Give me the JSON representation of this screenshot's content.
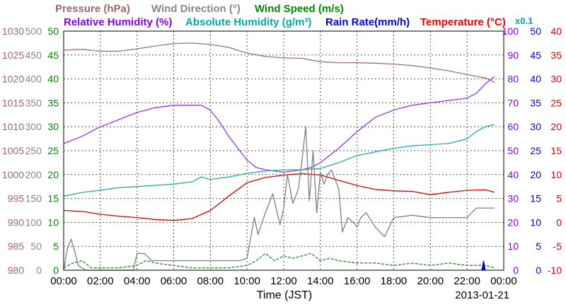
{
  "chart_data": {
    "type": "line",
    "legend": {
      "pressure": "Pressure (hPa)",
      "wind_direction": "Wind Direction (°)",
      "wind_speed": "Wind Speed (m/s)",
      "relative_humidity": "Relative Humidity (%)",
      "absolute_humidity": "Absolute Humidity (g/m³)",
      "rain_rate": "Rain Rate(mm/h)",
      "temperature": "Temperature (°C)",
      "scale_note": "x0.1"
    },
    "xlabel": "Time (JST)",
    "date": "2013-01-21",
    "x_ticks": [
      "00:00",
      "02:00",
      "04:00",
      "06:00",
      "08:00",
      "10:00",
      "12:00",
      "14:00",
      "16:00",
      "18:00",
      "20:00",
      "22:00",
      "00:00"
    ],
    "xlim": [
      0,
      24
    ],
    "grid": true,
    "axes": {
      "pressure": {
        "side": "left",
        "ticks": [
          "1030",
          "1025",
          "1020",
          "1015",
          "1010",
          "1005",
          "1000",
          "995",
          "990",
          "985",
          "980"
        ],
        "ylim": [
          980,
          1030
        ],
        "color": "#a06868"
      },
      "wind_direction": {
        "side": "left",
        "ticks": [
          "500",
          "450",
          "400",
          "350",
          "300",
          "250",
          "200",
          "150",
          "100",
          "50",
          "0"
        ],
        "ylim": [
          0,
          500
        ],
        "color": "#888888"
      },
      "wind_speed": {
        "side": "left",
        "ticks": [
          "50",
          "45",
          "40",
          "35",
          "30",
          "25",
          "20",
          "15",
          "10",
          "5",
          "0"
        ],
        "ylim": [
          0,
          50
        ],
        "color": "#008800"
      },
      "humidity": {
        "side": "right",
        "ticks": [
          "100",
          "90",
          "80",
          "70",
          "60",
          "50",
          "40",
          "30",
          "20",
          "10",
          "0"
        ],
        "ylim": [
          0,
          100
        ],
        "color": "#8800ee"
      },
      "rain_rate": {
        "side": "right",
        "ticks": [
          "50",
          "45",
          "40",
          "35",
          "30",
          "25",
          "20",
          "15",
          "10",
          "5",
          "0"
        ],
        "ylim": [
          0,
          50
        ],
        "color": "#0000ee"
      },
      "temperature": {
        "side": "right",
        "ticks": [
          "40",
          "35",
          "30",
          "25",
          "20",
          "15",
          "10",
          "5",
          "0",
          "-5",
          "-10"
        ],
        "ylim": [
          -10,
          40
        ],
        "color": "#ee0000"
      }
    },
    "series": [
      {
        "name": "Pressure (hPa)",
        "axis": "pressure",
        "color": "#a07070",
        "x": [
          0,
          1,
          2,
          3,
          4,
          5,
          6,
          7,
          8,
          9,
          10,
          11,
          12,
          13,
          14,
          15,
          16,
          17,
          18,
          19,
          20,
          21,
          22,
          23,
          23.5
        ],
        "y": [
          1026,
          1026.2,
          1025.8,
          1025.8,
          1026.3,
          1026.9,
          1027.4,
          1027.5,
          1027.2,
          1026.6,
          1025.4,
          1024.7,
          1024.4,
          1024.3,
          1023.6,
          1023.4,
          1023.4,
          1023.3,
          1023.1,
          1022.8,
          1022.3,
          1021.7,
          1020.9,
          1020.2,
          1019.3
        ]
      },
      {
        "name": "Relative Humidity (%)",
        "axis": "humidity",
        "color": "#9933ee",
        "x": [
          0,
          1,
          2,
          3,
          4,
          5,
          6,
          7,
          7.5,
          8,
          8.5,
          9,
          9.5,
          10,
          10.5,
          11,
          12,
          13,
          13.5,
          14,
          14.5,
          15,
          16,
          17,
          18,
          19,
          20,
          21,
          22,
          22.5,
          23,
          23.5
        ],
        "y": [
          53,
          56,
          60,
          63,
          66,
          68,
          69,
          69,
          69,
          67,
          62,
          56,
          51,
          46,
          43,
          42,
          41,
          42,
          43,
          45,
          48,
          51,
          58,
          64,
          67,
          69,
          70,
          71,
          72,
          74,
          78,
          81
        ]
      },
      {
        "name": "Absolute Humidity (g/m³)",
        "axis": "humidity",
        "color": "#20b0b0",
        "x": [
          0,
          1,
          2,
          3,
          4,
          5,
          6,
          7,
          7.5,
          8,
          8.5,
          9,
          10,
          11,
          12,
          13,
          14,
          15,
          16,
          17,
          18,
          19,
          20,
          21,
          22,
          22.5,
          23,
          23.5
        ],
        "y": [
          31,
          32.5,
          33.5,
          34.5,
          35,
          35.5,
          36,
          37,
          39,
          38,
          38.5,
          39,
          40.5,
          41.5,
          42,
          42,
          42.5,
          45,
          48,
          49.5,
          51,
          52,
          52.5,
          53,
          55,
          58,
          60,
          61
        ]
      },
      {
        "name": "Temperature (°C)",
        "axis": "temperature",
        "color": "#dd0000",
        "x": [
          0,
          1,
          2,
          3,
          4,
          5,
          6,
          7,
          8,
          9,
          10,
          11,
          12,
          13,
          14,
          15,
          16,
          17,
          18,
          19,
          20,
          21,
          22,
          23,
          23.5
        ],
        "y": [
          2.5,
          2.3,
          1.7,
          1.3,
          1.0,
          0.6,
          0.4,
          0.8,
          2.5,
          5.5,
          8.3,
          9.4,
          9.9,
          10.2,
          9.9,
          8.8,
          7.7,
          6.9,
          6.6,
          6.5,
          5.8,
          6.3,
          6.7,
          6.8,
          6.3
        ]
      },
      {
        "name": "Wind Direction (°)",
        "axis": "wind_direction",
        "color": "#808080",
        "x": [
          0,
          0.2,
          0.4,
          0.6,
          0.8,
          1.2,
          2,
          3,
          3.8,
          4,
          4.4,
          4.8,
          5,
          6,
          7,
          8,
          9,
          9.6,
          10,
          10.4,
          10.6,
          11,
          11.4,
          11.8,
          12,
          12.2,
          12.5,
          12.8,
          13,
          13.2,
          13.4,
          13.6,
          13.8,
          14,
          14.2,
          14.4,
          14.6,
          15,
          15.2,
          15.5,
          15.8,
          16,
          16.2,
          16.5,
          17,
          17.5,
          18,
          19,
          20,
          21,
          22,
          22.5,
          23,
          23.5
        ],
        "y": [
          0,
          45,
          65,
          40,
          10,
          0,
          0,
          0,
          0,
          35,
          35,
          20,
          20,
          20,
          20,
          20,
          20,
          20,
          25,
          110,
          75,
          120,
          160,
          95,
          130,
          200,
          140,
          170,
          230,
          300,
          145,
          250,
          120,
          205,
          180,
          200,
          210,
          170,
          80,
          110,
          100,
          90,
          110,
          120,
          90,
          70,
          110,
          115,
          110,
          110,
          110,
          130,
          130,
          130
        ]
      },
      {
        "name": "Wind Speed (m/s)",
        "axis": "wind_speed",
        "color": "#228822",
        "x": [
          0,
          0.5,
          1,
          1.5,
          2,
          3,
          4,
          4.5,
          5,
          6,
          7,
          8,
          9,
          10,
          10.5,
          11,
          11.5,
          12,
          12.5,
          13,
          13.5,
          14,
          14.5,
          15,
          16,
          17,
          18,
          19,
          20,
          21,
          22,
          23,
          23.5
        ],
        "y": [
          0.5,
          1.5,
          2,
          0.5,
          0.5,
          0.5,
          1,
          2,
          1.5,
          1,
          0.5,
          0.5,
          0.5,
          1,
          2,
          3.5,
          2,
          3,
          2.5,
          3,
          3.5,
          2,
          2.5,
          2,
          1.5,
          1.5,
          1,
          1.5,
          1,
          1.5,
          1,
          1,
          0.5
        ]
      },
      {
        "name": "Rain Rate(mm/h)",
        "axis": "rain_rate",
        "color": "#0000cc",
        "x": [
          22.8,
          22.9,
          23.0
        ],
        "y": [
          0,
          2,
          0
        ]
      }
    ]
  }
}
